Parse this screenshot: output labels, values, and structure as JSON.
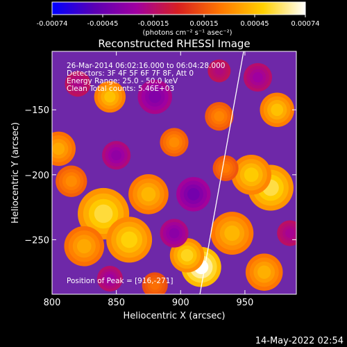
{
  "colorbar": {
    "ticks": [
      "-0.00074",
      "-0.00045",
      "-0.00015",
      "0.00015",
      "0.00045",
      "0.00074"
    ],
    "unit_label": "(photons cm⁻² s⁻¹ asec⁻²)",
    "colors": [
      "#0000ff",
      "#5a00b4",
      "#a000a0",
      "#d82020",
      "#ff7800",
      "#ffd000",
      "#ffffff"
    ]
  },
  "chart_data": {
    "type": "heatmap",
    "title": "Reconstructed RHESSI Image",
    "xlabel": "Heliocentric X (arcsec)",
    "ylabel": "Heliocentric Y (arcsec)",
    "xlim": [
      800,
      990
    ],
    "ylim": [
      -292,
      -105
    ],
    "x_ticks": [
      800,
      850,
      900,
      950
    ],
    "y_ticks": [
      -150,
      -200,
      -250
    ],
    "zlim": [
      -0.00074,
      0.00074
    ],
    "info_lines": [
      "26-Mar-2014 06:02:16.000 to 06:04:28.000",
      "Detectors: 3F 4F 5F 6F 7F 8F, Att 0",
      "Energy Range: 25.0 - 50.0 keV",
      "Clean     Total counts: 5.46E+03"
    ],
    "peak_label": "Position of Peak = [916,-271]",
    "peak": [
      916,
      -271
    ],
    "limb_line": [
      [
        915,
        -292
      ],
      [
        949,
        -105
      ]
    ],
    "blobs": [
      {
        "x": 916,
        "y": -271,
        "r": 14,
        "v": 0.00074
      },
      {
        "x": 905,
        "y": -262,
        "r": 12,
        "v": 0.00052
      },
      {
        "x": 840,
        "y": -230,
        "r": 18,
        "v": 0.00055
      },
      {
        "x": 860,
        "y": -250,
        "r": 16,
        "v": 0.0005
      },
      {
        "x": 875,
        "y": -215,
        "r": 14,
        "v": 0.00042
      },
      {
        "x": 825,
        "y": -255,
        "r": 14,
        "v": 0.00038
      },
      {
        "x": 970,
        "y": -210,
        "r": 16,
        "v": 0.00056
      },
      {
        "x": 955,
        "y": -200,
        "r": 14,
        "v": 0.00048
      },
      {
        "x": 940,
        "y": -245,
        "r": 15,
        "v": 0.00042
      },
      {
        "x": 975,
        "y": -150,
        "r": 12,
        "v": 0.00045
      },
      {
        "x": 965,
        "y": -275,
        "r": 13,
        "v": 0.0004
      },
      {
        "x": 845,
        "y": -140,
        "r": 11,
        "v": 0.00045
      },
      {
        "x": 805,
        "y": -180,
        "r": 12,
        "v": 0.00038
      },
      {
        "x": 895,
        "y": -175,
        "r": 10,
        "v": 0.0003
      },
      {
        "x": 930,
        "y": -155,
        "r": 10,
        "v": 0.00028
      },
      {
        "x": 815,
        "y": -205,
        "r": 11,
        "v": 0.0003
      },
      {
        "x": 880,
        "y": -285,
        "r": 9,
        "v": 0.00022
      },
      {
        "x": 935,
        "y": -195,
        "r": 9,
        "v": 0.00025
      },
      {
        "x": 820,
        "y": -130,
        "r": 9,
        "v": -0.0002
      },
      {
        "x": 880,
        "y": -140,
        "r": 12,
        "v": -0.00035
      },
      {
        "x": 910,
        "y": -215,
        "r": 12,
        "v": -0.0004
      },
      {
        "x": 895,
        "y": -245,
        "r": 10,
        "v": -0.00032
      },
      {
        "x": 850,
        "y": -185,
        "r": 10,
        "v": -0.0003
      },
      {
        "x": 960,
        "y": -125,
        "r": 10,
        "v": -0.00025
      },
      {
        "x": 985,
        "y": -245,
        "r": 9,
        "v": -0.00022
      },
      {
        "x": 845,
        "y": -280,
        "r": 9,
        "v": -0.00025
      },
      {
        "x": 930,
        "y": -120,
        "r": 8,
        "v": -0.00018
      }
    ]
  },
  "timestamp": "14-May-2022 02:54"
}
